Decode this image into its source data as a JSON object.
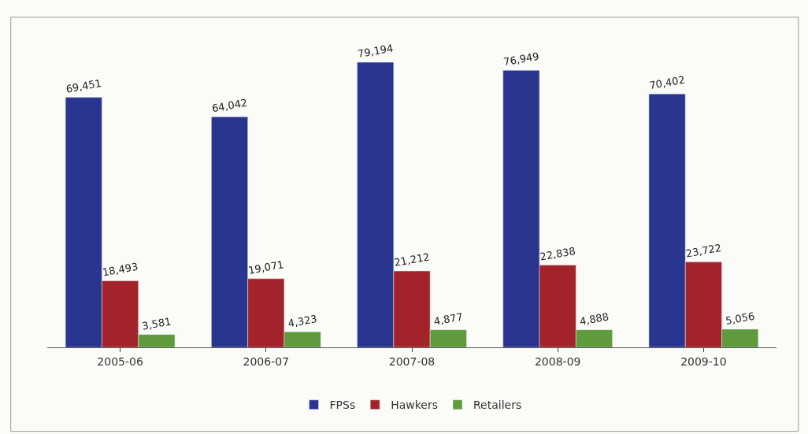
{
  "chart_data": {
    "type": "bar",
    "categories": [
      "2005-06",
      "2006-07",
      "2007-08",
      "2008-09",
      "2009-10"
    ],
    "series": [
      {
        "name": "FPSs",
        "color": "#2a3590",
        "values": [
          69451,
          64042,
          79194,
          76949,
          70402
        ],
        "value_labels": [
          "69,451",
          "64,042",
          "79,194",
          "76,949",
          "70,402"
        ]
      },
      {
        "name": "Hawkers",
        "color": "#a3232a",
        "values": [
          18493,
          19071,
          21212,
          22838,
          23722
        ],
        "value_labels": [
          "18,493",
          "19,071",
          "21,212",
          "22,838",
          "23,722"
        ]
      },
      {
        "name": "Retailers",
        "color": "#5f9a3c",
        "values": [
          3581,
          4323,
          4877,
          4888,
          5056
        ],
        "value_labels": [
          "3,581",
          "4,323",
          "4,877",
          "4,888",
          "5,056"
        ]
      }
    ],
    "legend": "bottom",
    "grid": false
  }
}
